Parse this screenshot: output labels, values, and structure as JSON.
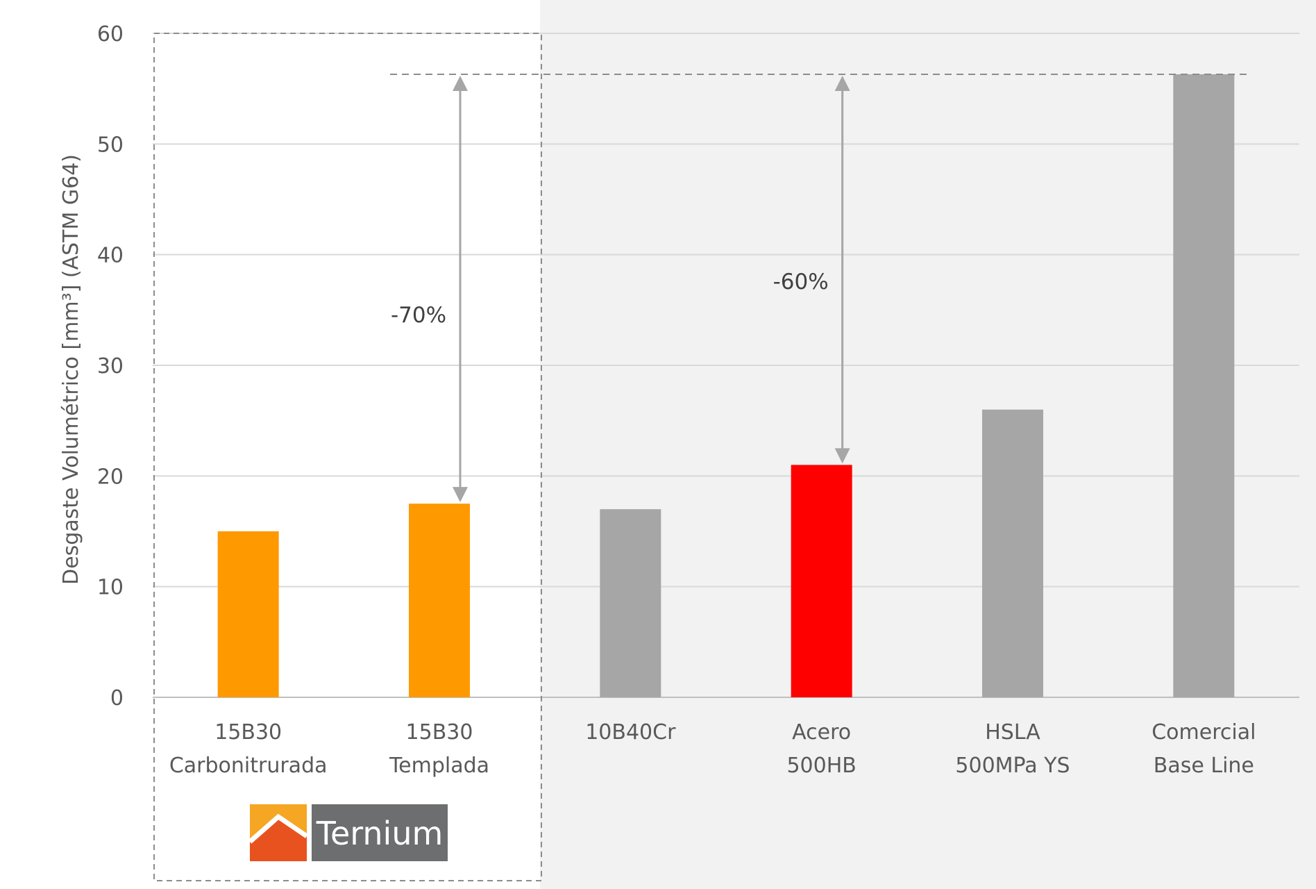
{
  "chart_data": {
    "type": "bar",
    "ylabel": "Desgaste Volumétrico [mm³] (ASTM G64)",
    "ylim": [
      0,
      60
    ],
    "yticks": [
      0,
      10,
      20,
      30,
      40,
      50,
      60
    ],
    "grid": true,
    "categories": [
      [
        "15B30",
        "Carbonitrurada"
      ],
      [
        "15B30",
        "Templada"
      ],
      [
        "10B40Cr"
      ],
      [
        "Acero",
        "500HB"
      ],
      [
        "HSLA",
        "500MPa YS"
      ],
      [
        "Comercial",
        "Base Line"
      ]
    ],
    "values": [
      15,
      17.5,
      17,
      21,
      26,
      56.3
    ],
    "bar_colors": [
      "#ff9900",
      "#ff9900",
      "#a6a6a6",
      "#ff0000",
      "#a6a6a6",
      "#a6a6a6"
    ],
    "reference_line": 56.3,
    "annotations": [
      {
        "text": "-70%",
        "from": 56.3,
        "to": 17.5,
        "category_index": 1
      },
      {
        "text": "-60%",
        "from": 56.3,
        "to": 21,
        "category_index": 3
      }
    ]
  },
  "logo": {
    "text": "Ternium",
    "colors": {
      "orange": "#f5a623",
      "red": "#e8521f",
      "gray": "#6d6e70"
    }
  },
  "colors": {
    "grid": "#d9d9d9",
    "shaded_region": "#f2f2f2",
    "dashed_box": "#8c8c8c",
    "arrow": "#a6a6a6"
  }
}
